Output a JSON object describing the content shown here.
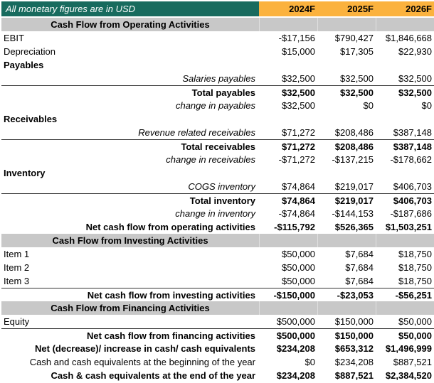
{
  "header": {
    "note": "All monetary figures are in USD",
    "years": [
      "2024F",
      "2025F",
      "2026F"
    ]
  },
  "colors": {
    "teal": "#186B5E",
    "orange": "#FBB23E",
    "section_gray": "#C8C8C8"
  },
  "table": {
    "rows": [
      {
        "type": "section",
        "label": "Cash Flow from Operating Activities",
        "values": [
          "",
          "",
          ""
        ]
      },
      {
        "type": "left",
        "label": "EBIT",
        "values": [
          "-$17,156",
          "$790,427",
          "$1,846,668"
        ]
      },
      {
        "type": "left",
        "label": "Depreciation",
        "values": [
          "$15,000",
          "$17,305",
          "$22,930"
        ]
      },
      {
        "type": "left-bold",
        "label": "Payables",
        "values": [
          "",
          "",
          ""
        ]
      },
      {
        "type": "italic",
        "label": "Salaries payables",
        "values": [
          "$32,500",
          "$32,500",
          "$32,500"
        ]
      },
      {
        "type": "total",
        "label": "Total payables",
        "values": [
          "$32,500",
          "$32,500",
          "$32,500"
        ]
      },
      {
        "type": "italic",
        "label": "change in payables",
        "values": [
          "$32,500",
          "$0",
          "$0"
        ]
      },
      {
        "type": "left-bold",
        "label": "Receivables",
        "values": [
          "",
          "",
          ""
        ]
      },
      {
        "type": "italic",
        "label": "Revenue related receivables",
        "values": [
          "$71,272",
          "$208,486",
          "$387,148"
        ]
      },
      {
        "type": "total",
        "label": "Total receivables",
        "values": [
          "$71,272",
          "$208,486",
          "$387,148"
        ]
      },
      {
        "type": "italic",
        "label": "change in receivables",
        "values": [
          "-$71,272",
          "-$137,215",
          "-$178,662"
        ]
      },
      {
        "type": "left-bold",
        "label": "Inventory",
        "values": [
          "",
          "",
          ""
        ]
      },
      {
        "type": "italic",
        "label": "COGS inventory",
        "values": [
          "$74,864",
          "$219,017",
          "$406,703"
        ]
      },
      {
        "type": "total",
        "label": "Total inventory",
        "values": [
          "$74,864",
          "$219,017",
          "$406,703"
        ]
      },
      {
        "type": "italic",
        "label": "change in inventory",
        "values": [
          "-$74,864",
          "-$144,153",
          "-$187,686"
        ]
      },
      {
        "type": "bold-right",
        "label": "Net cash flow from operating activities",
        "values": [
          "-$115,792",
          "$526,365",
          "$1,503,251"
        ]
      },
      {
        "type": "section",
        "label": "Cash Flow from Investing Activities",
        "values": [
          "",
          "",
          ""
        ]
      },
      {
        "type": "left",
        "label": "Item 1",
        "values": [
          "$50,000",
          "$7,684",
          "$18,750"
        ]
      },
      {
        "type": "left",
        "label": "Item 2",
        "values": [
          "$50,000",
          "$7,684",
          "$18,750"
        ]
      },
      {
        "type": "left",
        "label": "Item 3",
        "values": [
          "$50,000",
          "$7,684",
          "$18,750"
        ]
      },
      {
        "type": "total",
        "label": "Net cash flow from investing activities",
        "values": [
          "-$150,000",
          "-$23,053",
          "-$56,251"
        ]
      },
      {
        "type": "section",
        "label": "Cash Flow from Financing Activities",
        "values": [
          "",
          "",
          ""
        ]
      },
      {
        "type": "left",
        "label": "Equity",
        "values": [
          "$500,000",
          "$150,000",
          "$50,000"
        ]
      },
      {
        "type": "total",
        "label": "Net cash flow from financing activities",
        "values": [
          "$500,000",
          "$150,000",
          "$50,000"
        ]
      },
      {
        "type": "bold-right",
        "label": "Net (decrease)/ increase in cash/ cash equivalents",
        "values": [
          "$234,208",
          "$653,312",
          "$1,496,999"
        ]
      },
      {
        "type": "right",
        "label": "Cash and cash equivalents at the beginning of the year",
        "values": [
          "$0",
          "$234,208",
          "$887,521"
        ]
      },
      {
        "type": "bold-right",
        "label": "Cash & cash equivalents at the end of the year",
        "values": [
          "$234,208",
          "$887,521",
          "$2,384,520"
        ]
      }
    ]
  }
}
